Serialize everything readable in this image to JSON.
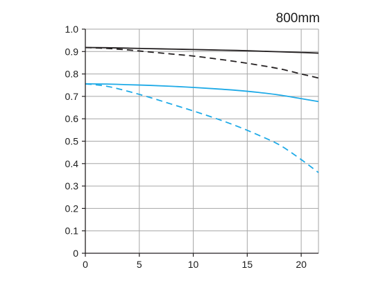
{
  "chart_data": {
    "type": "line",
    "title": "800mm",
    "xlabel": "",
    "ylabel": "",
    "xlim": [
      0,
      21.6
    ],
    "ylim": [
      0,
      1.0
    ],
    "x_ticks": [
      0,
      5,
      10,
      15,
      20
    ],
    "x_tick_labels": [
      "0",
      "5",
      "10",
      "15",
      "20"
    ],
    "y_ticks": [
      0,
      0.1,
      0.2,
      0.3,
      0.4,
      0.5,
      0.6,
      0.7,
      0.8,
      0.9,
      1.0
    ],
    "y_tick_labels": [
      "0",
      "0.1",
      "0.2",
      "0.3",
      "0.4",
      "0.5",
      "0.6",
      "0.7",
      "0.8",
      "0.9",
      "1.0"
    ],
    "grid": true,
    "legend": "none",
    "series": [
      {
        "color": "#231f20",
        "style": "solid",
        "x": [
          0,
          2,
          4,
          6,
          8,
          10,
          12,
          14,
          16,
          18,
          20,
          21.6
        ],
        "y": [
          0.918,
          0.917,
          0.915,
          0.913,
          0.911,
          0.909,
          0.907,
          0.905,
          0.902,
          0.899,
          0.896,
          0.893
        ]
      },
      {
        "color": "#231f20",
        "style": "dashed",
        "x": [
          0,
          2,
          4,
          6,
          8,
          10,
          12,
          14,
          16,
          18,
          20,
          21.6
        ],
        "y": [
          0.918,
          0.914,
          0.907,
          0.898,
          0.889,
          0.88,
          0.868,
          0.855,
          0.84,
          0.823,
          0.8,
          0.782
        ]
      },
      {
        "color": "#1eaae7",
        "style": "solid",
        "x": [
          0,
          2,
          4,
          6,
          8,
          10,
          12,
          14,
          16,
          18,
          20,
          21.6
        ],
        "y": [
          0.756,
          0.755,
          0.752,
          0.749,
          0.745,
          0.74,
          0.734,
          0.727,
          0.718,
          0.706,
          0.69,
          0.677
        ]
      },
      {
        "color": "#1eaae7",
        "style": "dashed",
        "x": [
          0,
          2,
          4,
          6,
          8,
          10,
          12,
          14,
          16,
          18,
          20,
          21.6
        ],
        "y": [
          0.756,
          0.745,
          0.722,
          0.695,
          0.665,
          0.635,
          0.603,
          0.568,
          0.528,
          0.483,
          0.418,
          0.36
        ]
      }
    ]
  }
}
